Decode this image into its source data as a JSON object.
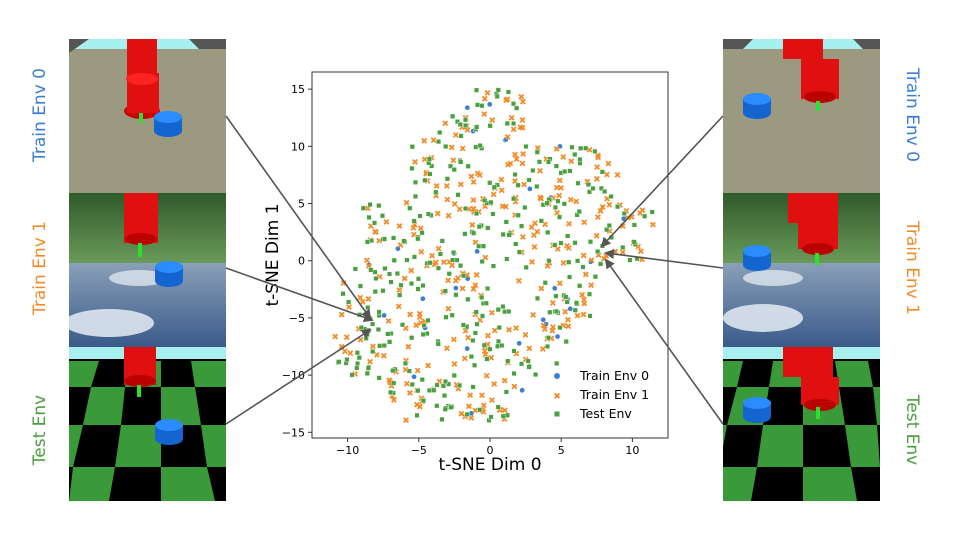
{
  "labels": {
    "left": [
      "Train Env 0",
      "Train Env 1",
      "Test Env"
    ],
    "right": [
      "Train Env 0",
      "Train Env 1",
      "Test Env"
    ]
  },
  "colors": {
    "train_env_0": "#3a7fd5",
    "train_env_1": "#f28c28",
    "test_env": "#4aa03f",
    "sky": "#a8f0f0",
    "table": "#9b9a80",
    "robot_red": "#e01010",
    "cylinder_blue": "#1e7ff0",
    "checker_green": "#3a9a3a"
  },
  "icons": [
    "robot-arm-icon",
    "blue-cylinder-icon",
    "arrow-icon"
  ],
  "chart_data": {
    "type": "scatter",
    "xlabel": "t-SNE Dim 0",
    "ylabel": "t-SNE Dim 1",
    "xlim": [
      -12.5,
      12.5
    ],
    "ylim": [
      -15.5,
      16.5
    ],
    "xticks": [
      -10,
      -5,
      0,
      5,
      10
    ],
    "yticks": [
      15,
      10,
      5,
      0,
      -5,
      -10,
      -15
    ],
    "xtick_labels": [
      "−10",
      "−5",
      "0",
      "5",
      "10"
    ],
    "ytick_labels": [
      "15",
      "10",
      "5",
      "0",
      "−5",
      "−10",
      "−15"
    ],
    "grid": false,
    "legend_position": "lower-right",
    "series": [
      {
        "name": "Train Env 0",
        "marker": "circle",
        "color": "#3a7fd5",
        "n_points": 30
      },
      {
        "name": "Train Env 1",
        "marker": "x",
        "color": "#f28c28",
        "n_points": 300
      },
      {
        "name": "Test Env",
        "marker": "square",
        "color": "#4aa03f",
        "n_points": 330
      }
    ],
    "cluster_shape": "irregular blob spanning roughly x from -11 to 11.5 and y from -14 to 15"
  }
}
